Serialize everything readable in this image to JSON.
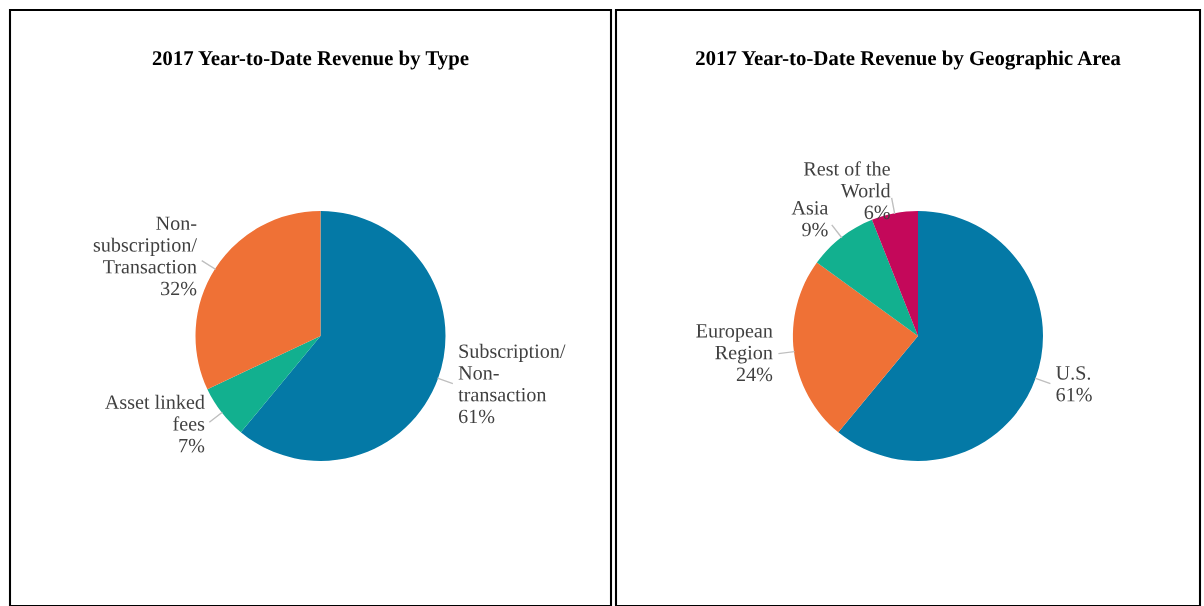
{
  "chart_data": [
    {
      "type": "pie",
      "title": "2017 Year-to-Date Revenue by Type",
      "categories": [
        "Subscription/\nNon-\ntransaction",
        "Asset linked\nfees",
        "Non-\nsubscription/\nTransaction"
      ],
      "values": [
        61,
        7,
        32
      ],
      "value_labels": [
        "61%",
        "7%",
        "32%"
      ],
      "colors": [
        "#0479a6",
        "#12b08f",
        "#ef7136"
      ]
    },
    {
      "type": "pie",
      "title": "2017 Year-to-Date Revenue by Geographic Area",
      "categories": [
        "U.S.",
        "European\nRegion",
        "Asia",
        "Rest of the\nWorld"
      ],
      "values": [
        61,
        24,
        9,
        6
      ],
      "value_labels": [
        "61%",
        "24%",
        "9%",
        "6%"
      ],
      "colors": [
        "#0479a6",
        "#ef7136",
        "#12b08f",
        "#c4085a"
      ]
    }
  ]
}
